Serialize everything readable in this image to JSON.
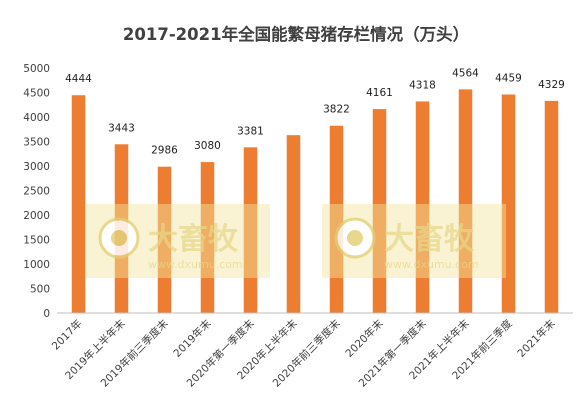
{
  "chart_data": {
    "type": "bar",
    "title": "2017-2021年全国能繁母猪存栏情况（万头）",
    "xlabel": "",
    "ylabel": "",
    "ylim": [
      0,
      5000
    ],
    "yticks": [
      0,
      500,
      1000,
      1500,
      2000,
      2500,
      3000,
      3500,
      4000,
      4500,
      5000
    ],
    "grid": false,
    "legend": "none",
    "bar_color": "#ED7D31",
    "categories": [
      "2017年",
      "2019年上半年末",
      "2019年前三季度末",
      "2019年末",
      "2020年第一季度末",
      "2020年上半年末",
      "2020年前三季度末",
      "2020年末",
      "2021年第一季度末",
      "2021年上半年末",
      "2021年前三季度",
      "2021年末"
    ],
    "values": [
      4444,
      3443,
      2986,
      3080,
      3381,
      3629,
      3822,
      4161,
      4318,
      4564,
      4459,
      4329
    ],
    "data_labels": [
      "4444",
      "3443",
      "2986",
      "3080",
      "3381",
      "",
      "3822",
      "4161",
      "4318",
      "4564",
      "4459",
      "4329"
    ]
  },
  "watermark": {
    "brand_text": "大畜牧",
    "url": "www.dxumu.com",
    "color": "#F2E6A0"
  }
}
